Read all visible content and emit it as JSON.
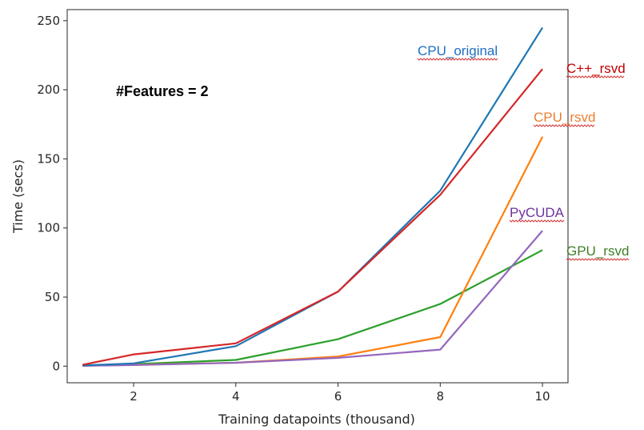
{
  "chart_data": {
    "type": "line",
    "xlabel": "Training datapoints (thousand)",
    "ylabel": "Time (secs)",
    "xlim": [
      0.7,
      10.5
    ],
    "ylim": [
      -12,
      258
    ],
    "xticks": [
      2,
      4,
      6,
      8,
      10
    ],
    "yticks": [
      0,
      50,
      100,
      150,
      200,
      250
    ],
    "grid": false,
    "annotation": "#Features = 2",
    "x": [
      1,
      2,
      4,
      6,
      8,
      10
    ],
    "series": [
      {
        "name": "CPU_original",
        "color": "#1f77b4",
        "labelColor": "#1f6fc1",
        "values": [
          0.5,
          2,
          14.5,
          54,
          127,
          245
        ]
      },
      {
        "name": "C++_rsvd",
        "color": "#d62728",
        "labelColor": "#c00000",
        "values": [
          1,
          8.5,
          16.5,
          54,
          124,
          215
        ]
      },
      {
        "name": "CPU_rsvd",
        "color": "#ff7f0e",
        "labelColor": "#ed7d31",
        "values": [
          0.3,
          1,
          2.5,
          7,
          21,
          166
        ]
      },
      {
        "name": "PyCUDA",
        "color": "#9467bd",
        "labelColor": "#7030a0",
        "values": [
          0.3,
          0.8,
          2.5,
          6,
          12,
          98
        ]
      },
      {
        "name": "GPU_rsvd",
        "color": "#2ca02c",
        "labelColor": "#3f7f27",
        "values": [
          0.3,
          1.5,
          4.5,
          19.5,
          45,
          84
        ]
      }
    ]
  }
}
